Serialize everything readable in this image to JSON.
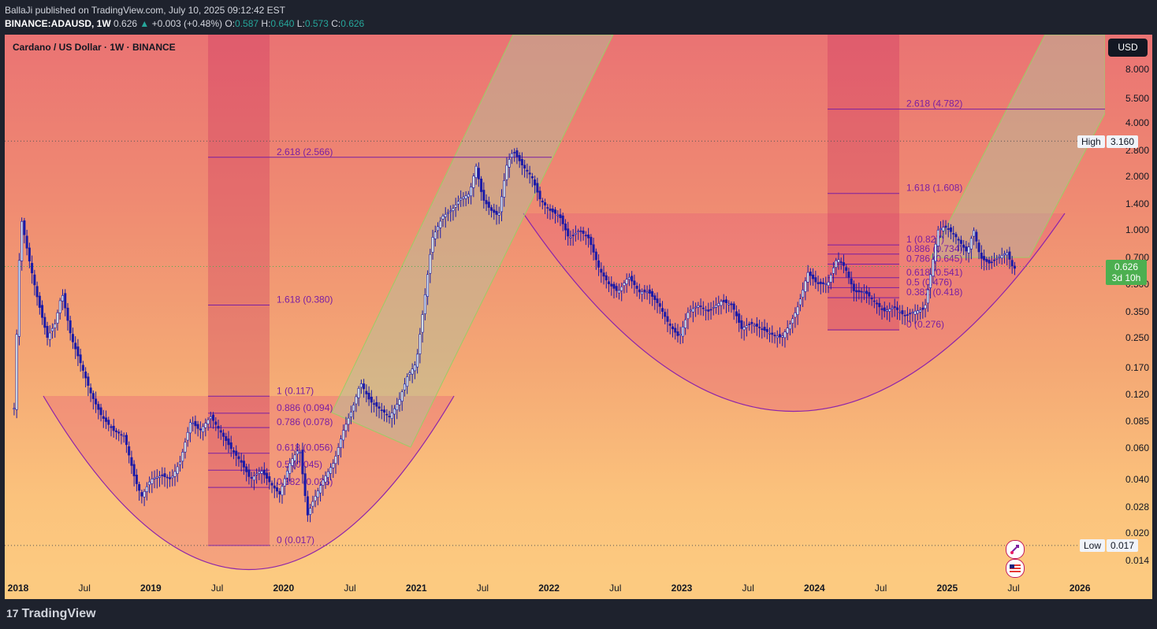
{
  "header": {
    "line1": "BallaJi published on TradingView.com, July 10, 2025 09:12:42 EST",
    "symbol": "BINANCE:ADAUSD, 1W",
    "price": "0.626",
    "change": "+0.003 (+0.48%)",
    "o_label": "O:",
    "o": "0.587",
    "h_label": "H:",
    "h": "0.640",
    "l_label": "L:",
    "l": "0.573",
    "c_label": "C:",
    "c": "0.626"
  },
  "chart_title": "Cardano / US Dollar · 1W · BINANCE",
  "currency_button": "USD",
  "high_label": "High",
  "high_value": "3.160",
  "low_label": "Low",
  "low_value": "0.017",
  "last_price": "0.626",
  "countdown": "3d 10h",
  "brand": "TradingView",
  "colors": {
    "candle": "#1a1aa8",
    "fib": "#7b1fa2",
    "channel": "#9ccc65",
    "last_price": "#4caf50"
  },
  "chart_data": {
    "type": "candlestick",
    "y_scale": "log",
    "ylim": [
      0.012,
      13
    ],
    "y_ticks": [
      "8.000",
      "5.500",
      "4.000",
      "2.800",
      "2.000",
      "1.400",
      "1.000",
      "0.700",
      "0.500",
      "0.350",
      "0.250",
      "0.170",
      "0.120",
      "0.085",
      "0.060",
      "0.040",
      "0.028",
      "0.020",
      "0.014"
    ],
    "x_ticks": [
      {
        "label": "2018",
        "bold": true,
        "t": 2018.0
      },
      {
        "label": "Jul",
        "bold": false,
        "t": 2018.5
      },
      {
        "label": "2019",
        "bold": true,
        "t": 2019.0
      },
      {
        "label": "Jul",
        "bold": false,
        "t": 2019.5
      },
      {
        "label": "2020",
        "bold": true,
        "t": 2020.0
      },
      {
        "label": "Jul",
        "bold": false,
        "t": 2020.5
      },
      {
        "label": "2021",
        "bold": true,
        "t": 2021.0
      },
      {
        "label": "Jul",
        "bold": false,
        "t": 2021.5
      },
      {
        "label": "2022",
        "bold": true,
        "t": 2022.0
      },
      {
        "label": "Jul",
        "bold": false,
        "t": 2022.5
      },
      {
        "label": "2023",
        "bold": true,
        "t": 2023.0
      },
      {
        "label": "Jul",
        "bold": false,
        "t": 2023.5
      },
      {
        "label": "2024",
        "bold": true,
        "t": 2024.0
      },
      {
        "label": "Jul",
        "bold": false,
        "t": 2024.5
      },
      {
        "label": "2025",
        "bold": true,
        "t": 2025.0
      },
      {
        "label": "Jul",
        "bold": false,
        "t": 2025.5
      },
      {
        "label": "2026",
        "bold": true,
        "t": 2026.0
      }
    ],
    "price_path": [
      [
        2017.97,
        0.1
      ],
      [
        2018.02,
        1.2
      ],
      [
        2018.08,
        0.7
      ],
      [
        2018.15,
        0.4
      ],
      [
        2018.22,
        0.25
      ],
      [
        2018.28,
        0.3
      ],
      [
        2018.33,
        0.45
      ],
      [
        2018.4,
        0.25
      ],
      [
        2018.47,
        0.18
      ],
      [
        2018.55,
        0.12
      ],
      [
        2018.63,
        0.09
      ],
      [
        2018.72,
        0.075
      ],
      [
        2018.8,
        0.07
      ],
      [
        2018.88,
        0.04
      ],
      [
        2018.93,
        0.032
      ],
      [
        2019.0,
        0.04
      ],
      [
        2019.08,
        0.042
      ],
      [
        2019.15,
        0.04
      ],
      [
        2019.22,
        0.05
      ],
      [
        2019.3,
        0.085
      ],
      [
        2019.37,
        0.075
      ],
      [
        2019.45,
        0.09
      ],
      [
        2019.52,
        0.075
      ],
      [
        2019.6,
        0.06
      ],
      [
        2019.68,
        0.05
      ],
      [
        2019.75,
        0.04
      ],
      [
        2019.83,
        0.045
      ],
      [
        2019.9,
        0.038
      ],
      [
        2019.97,
        0.033
      ],
      [
        2020.05,
        0.05
      ],
      [
        2020.12,
        0.06
      ],
      [
        2020.18,
        0.025
      ],
      [
        2020.22,
        0.03
      ],
      [
        2020.3,
        0.04
      ],
      [
        2020.38,
        0.05
      ],
      [
        2020.45,
        0.075
      ],
      [
        2020.52,
        0.1
      ],
      [
        2020.58,
        0.14
      ],
      [
        2020.65,
        0.11
      ],
      [
        2020.72,
        0.1
      ],
      [
        2020.8,
        0.09
      ],
      [
        2020.87,
        0.11
      ],
      [
        2020.93,
        0.15
      ],
      [
        2021.0,
        0.18
      ],
      [
        2021.06,
        0.4
      ],
      [
        2021.12,
        0.9
      ],
      [
        2021.2,
        1.2
      ],
      [
        2021.27,
        1.3
      ],
      [
        2021.33,
        1.5
      ],
      [
        2021.4,
        1.6
      ],
      [
        2021.45,
        2.3
      ],
      [
        2021.5,
        1.5
      ],
      [
        2021.56,
        1.3
      ],
      [
        2021.62,
        1.2
      ],
      [
        2021.68,
        2.3
      ],
      [
        2021.73,
        2.8
      ],
      [
        2021.8,
        2.3
      ],
      [
        2021.87,
        2.0
      ],
      [
        2021.93,
        1.5
      ],
      [
        2022.0,
        1.3
      ],
      [
        2022.08,
        1.2
      ],
      [
        2022.15,
        0.9
      ],
      [
        2022.23,
        1.0
      ],
      [
        2022.3,
        0.9
      ],
      [
        2022.38,
        0.6
      ],
      [
        2022.45,
        0.5
      ],
      [
        2022.52,
        0.45
      ],
      [
        2022.6,
        0.55
      ],
      [
        2022.68,
        0.45
      ],
      [
        2022.75,
        0.45
      ],
      [
        2022.83,
        0.38
      ],
      [
        2022.9,
        0.3
      ],
      [
        2022.98,
        0.25
      ],
      [
        2023.05,
        0.35
      ],
      [
        2023.13,
        0.38
      ],
      [
        2023.2,
        0.35
      ],
      [
        2023.3,
        0.4
      ],
      [
        2023.38,
        0.38
      ],
      [
        2023.45,
        0.28
      ],
      [
        2023.52,
        0.3
      ],
      [
        2023.6,
        0.28
      ],
      [
        2023.68,
        0.26
      ],
      [
        2023.75,
        0.25
      ],
      [
        2023.82,
        0.3
      ],
      [
        2023.88,
        0.38
      ],
      [
        2023.95,
        0.58
      ],
      [
        2024.02,
        0.5
      ],
      [
        2024.1,
        0.5
      ],
      [
        2024.17,
        0.7
      ],
      [
        2024.23,
        0.62
      ],
      [
        2024.3,
        0.45
      ],
      [
        2024.38,
        0.45
      ],
      [
        2024.45,
        0.4
      ],
      [
        2024.52,
        0.35
      ],
      [
        2024.6,
        0.37
      ],
      [
        2024.68,
        0.33
      ],
      [
        2024.75,
        0.35
      ],
      [
        2024.83,
        0.36
      ],
      [
        2024.88,
        0.6
      ],
      [
        2024.93,
        1.0
      ],
      [
        2024.98,
        1.05
      ],
      [
        2025.05,
        0.95
      ],
      [
        2025.1,
        0.85
      ],
      [
        2025.15,
        0.75
      ],
      [
        2025.2,
        1.0
      ],
      [
        2025.25,
        0.7
      ],
      [
        2025.32,
        0.65
      ],
      [
        2025.38,
        0.7
      ],
      [
        2025.45,
        0.75
      ],
      [
        2025.5,
        0.6
      ],
      [
        2025.52,
        0.626
      ]
    ],
    "fib_left": {
      "levels": [
        {
          "label": "2.618 (2.566)",
          "value": 2.566
        },
        {
          "label": "1.618 (0.380)",
          "value": 0.38
        },
        {
          "label": "1 (0.117)",
          "value": 0.117
        },
        {
          "label": "0.886 (0.094)",
          "value": 0.094
        },
        {
          "label": "0.786 (0.078)",
          "value": 0.078
        },
        {
          "label": "0.618 (0.056)",
          "value": 0.056
        },
        {
          "label": "0.5 (0.045)",
          "value": 0.045
        },
        {
          "label": "0.382 (0.036)",
          "value": 0.036
        },
        {
          "label": "0 (0.017)",
          "value": 0.017
        }
      ]
    },
    "fib_right": {
      "levels": [
        {
          "label": "2.618 (4.782)",
          "value": 4.782
        },
        {
          "label": "1.618 (1.608)",
          "value": 1.608
        },
        {
          "label": "1 (0.827)",
          "value": 0.827
        },
        {
          "label": "0.886 (0.734)",
          "value": 0.734
        },
        {
          "label": "0.786 (0.645)",
          "value": 0.645
        },
        {
          "label": "0.618 (0.541)",
          "value": 0.541
        },
        {
          "label": "0.5 (0.476)",
          "value": 0.476
        },
        {
          "label": "0.382 (0.418)",
          "value": 0.418
        },
        {
          "label": "0 (0.276)",
          "value": 0.276
        }
      ]
    }
  }
}
